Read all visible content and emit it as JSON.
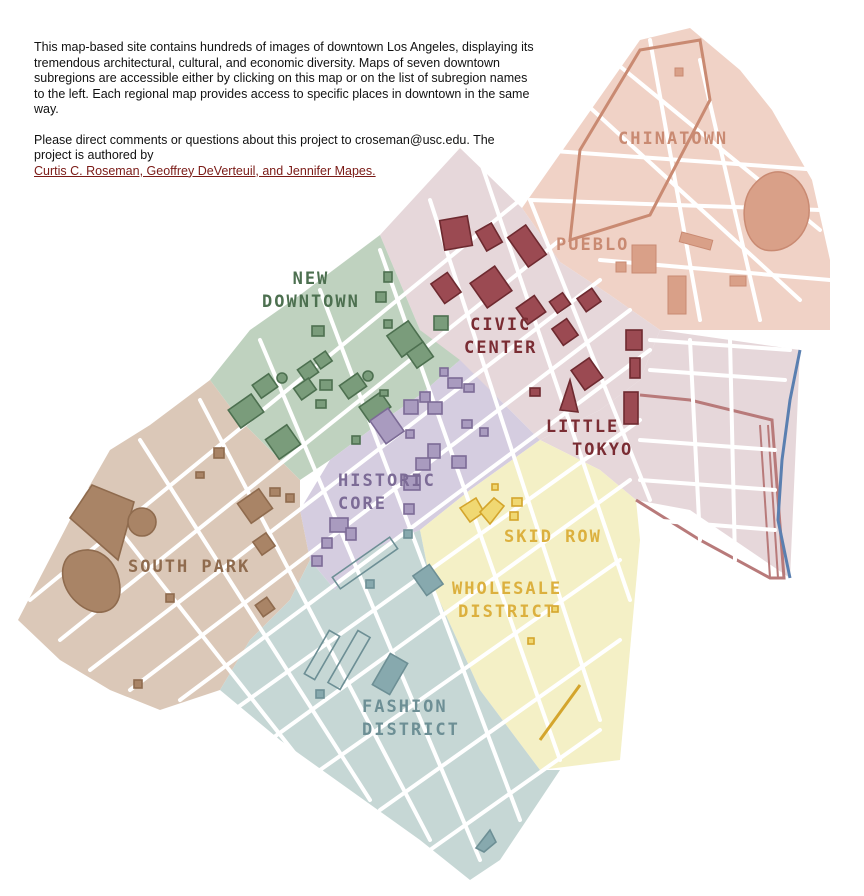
{
  "intro": {
    "paragraph1": "This map-based site contains hundreds of images of downtown Los Angeles, displaying its tremendous architectural, cultural, and economic diversity. Maps of seven downtown subregions are accessible either by clicking on this map or on the list of subregion names to the left. Each regional map provides access to specific places in downtown in the same way.",
    "paragraph2": "Please direct comments or questions about this project to croseman@usc.edu. The project is authored by",
    "authors": "Curtis C. Roseman, Geoffrey DeVerteuil, and Jennifer Mapes."
  },
  "regions": {
    "chinatown": {
      "lines": [
        "CHINATOWN"
      ],
      "fill": "#f0d2c6",
      "accent": "#c98a72"
    },
    "pueblo": {
      "lines": [
        "PUEBLO"
      ],
      "fill": "#f0d2c6",
      "accent": "#c98a72"
    },
    "civic_center": {
      "lines": [
        "CIVIC",
        "CENTER"
      ],
      "fill": "#e6d7da",
      "accent": "#7a2c33"
    },
    "little_tokyo": {
      "lines": [
        "LITTLE",
        "TOKYO"
      ],
      "fill": "#e6d7da",
      "accent": "#7a2c33"
    },
    "new_downtown": {
      "lines": [
        "NEW",
        "DOWNTOWN"
      ],
      "fill": "#bfd2bf",
      "accent": "#4d7050"
    },
    "historic_core": {
      "lines": [
        "HISTORIC",
        "CORE"
      ],
      "fill": "#d5cde0",
      "accent": "#7c6b96"
    },
    "skid_row": {
      "lines": [
        "SKID ROW"
      ],
      "fill": "#f4f0c6",
      "accent": "#dcb03e"
    },
    "wholesale_district": {
      "lines": [
        "WHOLESALE",
        "DISTRICT"
      ],
      "fill": "#f4f0c6",
      "accent": "#dcb03e"
    },
    "south_park": {
      "lines": [
        "SOUTH PARK"
      ],
      "fill": "#dbc8b8",
      "accent": "#8f6b4e"
    },
    "fashion_district": {
      "lines": [
        "FASHION",
        "DISTRICT"
      ],
      "fill": "#c6d7d5",
      "accent": "#6d8f95"
    }
  },
  "colors": {
    "river": "#5a7fb0",
    "streets": "#ffffff"
  }
}
